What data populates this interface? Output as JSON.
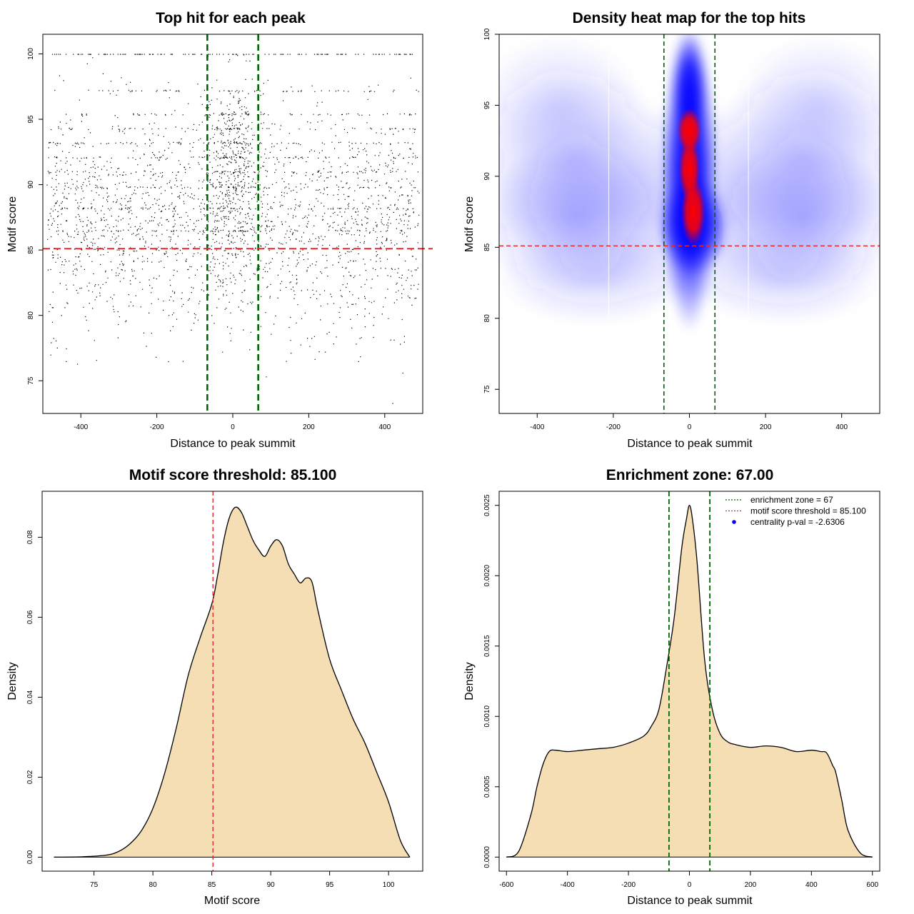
{
  "chart_data": [
    {
      "id": "scatter",
      "type": "scatter",
      "title": "Top hit for each peak",
      "xlabel": "Distance to peak summit",
      "ylabel": "Motif score",
      "xlim": [
        -500,
        500
      ],
      "ylim": [
        72.5,
        101.5
      ],
      "xticks": [
        -400,
        -200,
        0,
        200,
        400
      ],
      "yticks": [
        75,
        80,
        85,
        90,
        95,
        100
      ],
      "vlines": [
        -67,
        67
      ],
      "hline": 85.1,
      "colors": {
        "points": "#000000",
        "vline": "#006400",
        "hline": "#e8262b"
      },
      "points_summary": {
        "n_points": 8000,
        "x_range": [
          -500,
          500
        ],
        "y_range": [
          73.3,
          100
        ],
        "dense_x_center": 0,
        "dense_x_halfwidth": 67,
        "background_y_mode": 87,
        "center_y_mode": 91
      }
    },
    {
      "id": "heatmap",
      "type": "heatmap",
      "title": "Density heat map for the top hits",
      "xlabel": "Distance to peak summit",
      "ylabel": "Motif score",
      "xlim": [
        -500,
        500
      ],
      "ylim": [
        73.3,
        100
      ],
      "xticks": [
        -400,
        -200,
        0,
        200,
        400
      ],
      "yticks": [
        75,
        80,
        85,
        90,
        95,
        100
      ],
      "vlines": [
        -67,
        67
      ],
      "hline": 85.1,
      "colors": {
        "low": "#ffffff",
        "mid": "#0000ff",
        "high": "#ff0000",
        "vline": "#006400",
        "hline": "#e8262b"
      },
      "hotspots": [
        {
          "x": 0,
          "y": 93.2,
          "level": "high"
        },
        {
          "x": 0,
          "y": 90.5,
          "level": "high"
        },
        {
          "x": 10,
          "y": 87.5,
          "level": "high"
        }
      ]
    },
    {
      "id": "score-density",
      "type": "area",
      "title": "Motif score threshold: 85.100",
      "xlabel": "Motif score",
      "ylabel": "Density",
      "xlim": [
        70.6,
        102.9
      ],
      "ylim": [
        -0.0035,
        0.0915
      ],
      "xticks": [
        75,
        80,
        85,
        90,
        95,
        100
      ],
      "yticks": [
        0.0,
        0.02,
        0.04,
        0.06,
        0.08
      ],
      "ytick_labels": [
        "0.00",
        "0.02",
        "0.04",
        "0.06",
        "0.08"
      ],
      "vline": 85.1,
      "colors": {
        "fill": "#f5deb3",
        "line": "#000000",
        "vline": "#e8262b"
      },
      "x": [
        71.6,
        74,
        76,
        77,
        78,
        79,
        80,
        81,
        82,
        83,
        84,
        85,
        85.5,
        86,
        86.5,
        87,
        87.5,
        88,
        88.5,
        89,
        89.5,
        90,
        90.5,
        91,
        91.5,
        92,
        92.5,
        93,
        93.5,
        94,
        95,
        96,
        97,
        98,
        99,
        100,
        101,
        101.8
      ],
      "y": [
        0.0,
        0.0001,
        0.0005,
        0.0013,
        0.0032,
        0.0065,
        0.0122,
        0.021,
        0.0325,
        0.0455,
        0.0548,
        0.0633,
        0.0706,
        0.079,
        0.085,
        0.0875,
        0.0863,
        0.0828,
        0.0792,
        0.0768,
        0.0752,
        0.0778,
        0.0794,
        0.0778,
        0.0733,
        0.0708,
        0.0686,
        0.0698,
        0.0688,
        0.0618,
        0.0495,
        0.0418,
        0.0345,
        0.0285,
        0.0212,
        0.0138,
        0.0042,
        0.0
      ]
    },
    {
      "id": "distance-density",
      "type": "area",
      "title": "Enrichment zone: 67.00",
      "xlabel": "Distance to peak summit",
      "ylabel": "Density",
      "xlim": [
        -624,
        624
      ],
      "ylim": [
        -0.0001,
        0.0026
      ],
      "xticks": [
        -600,
        -400,
        -200,
        0,
        200,
        400,
        600
      ],
      "yticks": [
        0,
        0.0005,
        0.001,
        0.0015,
        0.002,
        0.0025
      ],
      "ytick_labels": [
        "0.0000",
        "0.0005",
        "0.0010",
        "0.0015",
        "0.0020",
        "0.0025"
      ],
      "vlines": [
        -67,
        67
      ],
      "colors": {
        "fill": "#f5deb3",
        "line": "#000000",
        "vline": "#006400"
      },
      "x": [
        -600,
        -560,
        -520,
        -500,
        -480,
        -460,
        -440,
        -400,
        -350,
        -300,
        -250,
        -200,
        -150,
        -125,
        -100,
        -75,
        -50,
        -25,
        -10,
        0,
        10,
        25,
        50,
        75,
        100,
        125,
        150,
        200,
        250,
        300,
        350,
        400,
        430,
        450,
        470,
        480,
        500,
        520,
        560,
        600
      ],
      "y": [
        0.0,
        4e-05,
        0.0003,
        0.0005,
        0.00066,
        0.00075,
        0.00076,
        0.00075,
        0.00076,
        0.00077,
        0.00078,
        0.00081,
        0.00086,
        0.00093,
        0.00105,
        0.00135,
        0.0017,
        0.0022,
        0.0024,
        0.0025,
        0.0024,
        0.0021,
        0.0014,
        0.00105,
        0.00088,
        0.00082,
        0.0008,
        0.00078,
        0.00079,
        0.00078,
        0.00075,
        0.00076,
        0.00075,
        0.00074,
        0.00065,
        0.0006,
        0.0004,
        0.00019,
        3e-05,
        0.0
      ],
      "legend": {
        "position": "top-right",
        "entries": [
          {
            "label": "enrichment zone = 67",
            "symbol": "dotted-line",
            "color": "#006400"
          },
          {
            "label": "motif score threshold = 85.100",
            "symbol": "dotted-line",
            "color": "#e8262b"
          },
          {
            "label": "centrality p-val = -2.6306",
            "symbol": "dot",
            "color": "#0000ff"
          }
        ]
      }
    }
  ]
}
